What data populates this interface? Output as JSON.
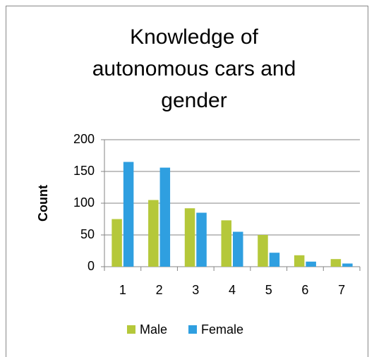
{
  "chart_data": {
    "type": "bar",
    "title": "Knowledge of autonomous cars and gender",
    "ylabel": "Count",
    "categories": [
      "1",
      "2",
      "3",
      "4",
      "5",
      "6",
      "7"
    ],
    "series": [
      {
        "name": "Male",
        "color": "#b5c83a",
        "values": [
          75,
          105,
          92,
          73,
          50,
          18,
          12
        ]
      },
      {
        "name": "Female",
        "color": "#2f9fe0",
        "values": [
          165,
          156,
          85,
          55,
          22,
          8,
          5
        ]
      }
    ],
    "ylim": [
      0,
      200
    ],
    "yticks": [
      0,
      50,
      100,
      150,
      200
    ],
    "grid": true,
    "legend": "bottom"
  }
}
